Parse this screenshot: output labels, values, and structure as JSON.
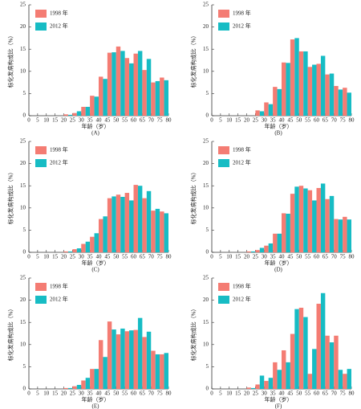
{
  "chart_data": [
    {
      "type": "bar",
      "label": "(A)",
      "xlabel": "年龄（岁）",
      "ylabel": "标化发病构成比（%）",
      "x": [
        0,
        5,
        10,
        15,
        20,
        25,
        30,
        35,
        40,
        45,
        50,
        55,
        60,
        65,
        70,
        75
      ],
      "xlim": [
        0,
        80
      ],
      "xticks": [
        0,
        5,
        10,
        15,
        20,
        25,
        30,
        35,
        40,
        45,
        50,
        55,
        60,
        65,
        70,
        75,
        80
      ],
      "ylim": [
        0,
        25
      ],
      "yticks": [
        0,
        5,
        10,
        15,
        20,
        25
      ],
      "legend": "upper left",
      "series": [
        {
          "name": "1998 年",
          "color": "#f47c73",
          "values": [
            0,
            0,
            0,
            0,
            0.3,
            0.6,
            2.0,
            4.5,
            8.8,
            14.2,
            15.6,
            13.0,
            14.0,
            10.3,
            7.5,
            8.6
          ]
        },
        {
          "name": "2012 年",
          "color": "#17bcc4",
          "values": [
            0,
            0,
            0,
            0,
            0.2,
            1.0,
            2.0,
            4.3,
            8.3,
            14.3,
            14.6,
            11.8,
            14.6,
            12.8,
            7.8,
            8.0
          ]
        }
      ]
    },
    {
      "type": "bar",
      "label": "(B)",
      "xlabel": "年龄（岁）",
      "ylabel": "标化发病构成比（%）",
      "x": [
        0,
        5,
        10,
        15,
        20,
        25,
        30,
        35,
        40,
        45,
        50,
        55,
        60,
        65,
        70,
        75
      ],
      "xlim": [
        0,
        80
      ],
      "xticks": [
        0,
        5,
        10,
        15,
        20,
        25,
        30,
        35,
        40,
        45,
        50,
        55,
        60,
        65,
        70,
        75,
        80
      ],
      "ylim": [
        0,
        25
      ],
      "yticks": [
        0,
        5,
        10,
        15,
        20,
        25
      ],
      "legend": "upper left",
      "series": [
        {
          "name": "1998 年",
          "color": "#f47c73",
          "values": [
            0,
            0,
            0,
            0,
            0,
            1.2,
            3.0,
            6.5,
            12.0,
            17.2,
            14.5,
            11.0,
            11.7,
            9.3,
            6.7,
            6.3
          ]
        },
        {
          "name": "2012 年",
          "color": "#17bcc4",
          "values": [
            0,
            0,
            0,
            0,
            0,
            1.0,
            2.6,
            6.0,
            11.9,
            17.5,
            14.5,
            11.5,
            13.5,
            9.5,
            5.9,
            5.2
          ]
        }
      ]
    },
    {
      "type": "bar",
      "label": "(C)",
      "xlabel": "年龄（岁）",
      "ylabel": "标化发病构成比（%）",
      "x": [
        0,
        5,
        10,
        15,
        20,
        25,
        30,
        35,
        40,
        45,
        50,
        55,
        60,
        65,
        70,
        75
      ],
      "xlim": [
        0,
        80
      ],
      "xticks": [
        0,
        5,
        10,
        15,
        20,
        25,
        30,
        35,
        40,
        45,
        50,
        55,
        60,
        65,
        70,
        75,
        80
      ],
      "ylim": [
        0,
        25
      ],
      "yticks": [
        0,
        5,
        10,
        15,
        20,
        25
      ],
      "legend": "upper left",
      "series": [
        {
          "name": "1998 年",
          "color": "#f47c73",
          "values": [
            0,
            0,
            0,
            0,
            0.2,
            0.7,
            1.9,
            3.5,
            7.5,
            12.2,
            13.0,
            13.4,
            15.2,
            12.2,
            9.4,
            9.2
          ]
        },
        {
          "name": "2012 年",
          "color": "#17bcc4",
          "values": [
            0,
            0,
            0,
            0,
            0.2,
            0.9,
            2.4,
            4.3,
            8.1,
            12.6,
            12.5,
            11.7,
            15.0,
            13.8,
            9.8,
            8.8
          ]
        }
      ]
    },
    {
      "type": "bar",
      "label": "(D)",
      "xlabel": "年龄（岁）",
      "ylabel": "标化发病构成比（%）",
      "x": [
        0,
        5,
        10,
        15,
        20,
        25,
        30,
        35,
        40,
        45,
        50,
        55,
        60,
        65,
        70,
        75
      ],
      "xlim": [
        0,
        80
      ],
      "xticks": [
        0,
        5,
        10,
        15,
        20,
        25,
        30,
        35,
        40,
        45,
        50,
        55,
        60,
        65,
        70,
        75,
        80
      ],
      "ylim": [
        0,
        25
      ],
      "yticks": [
        0,
        5,
        10,
        15,
        20,
        25
      ],
      "legend": "upper left",
      "series": [
        {
          "name": "1998 年",
          "color": "#f47c73",
          "values": [
            0,
            0,
            0,
            0,
            0.2,
            0.5,
            1.5,
            4.2,
            8.8,
            13.2,
            15.0,
            14.0,
            14.5,
            12.0,
            7.5,
            8.0
          ]
        },
        {
          "name": "2012 年",
          "color": "#17bcc4",
          "values": [
            0,
            0,
            0,
            0,
            0.2,
            1.0,
            2.0,
            4.2,
            8.7,
            14.8,
            14.4,
            11.7,
            15.5,
            12.7,
            7.4,
            7.4
          ]
        }
      ]
    },
    {
      "type": "bar",
      "label": "(E)",
      "xlabel": "年龄（岁）",
      "ylabel": "标化发病构成比（%）",
      "x": [
        0,
        5,
        10,
        15,
        20,
        25,
        30,
        35,
        40,
        45,
        50,
        55,
        60,
        65,
        70,
        75
      ],
      "xlim": [
        0,
        80
      ],
      "xticks": [
        0,
        5,
        10,
        15,
        20,
        25,
        30,
        35,
        40,
        45,
        50,
        55,
        60,
        65,
        70,
        75,
        80
      ],
      "ylim": [
        0,
        25
      ],
      "yticks": [
        0,
        5,
        10,
        15,
        20,
        25
      ],
      "legend": "upper left",
      "series": [
        {
          "name": "1998 年",
          "color": "#f47c73",
          "values": [
            0,
            0,
            0,
            0,
            0.2,
            0.6,
            1.9,
            4.5,
            11.0,
            15.2,
            12.3,
            13.0,
            13.3,
            11.7,
            8.6,
            7.8
          ]
        },
        {
          "name": "2012 年",
          "color": "#17bcc4",
          "values": [
            0,
            0,
            0,
            0,
            0.2,
            0.9,
            2.5,
            4.5,
            7.2,
            13.4,
            13.6,
            13.2,
            16.0,
            12.9,
            7.8,
            8.1
          ]
        }
      ]
    },
    {
      "type": "bar",
      "label": "(F)",
      "xlabel": "年龄（岁）",
      "ylabel": "标化发病构成比（%）",
      "x": [
        0,
        5,
        10,
        15,
        20,
        25,
        30,
        35,
        40,
        45,
        50,
        55,
        60,
        65,
        70,
        75
      ],
      "xlim": [
        0,
        80
      ],
      "xticks": [
        0,
        5,
        10,
        15,
        20,
        25,
        30,
        35,
        40,
        45,
        50,
        55,
        60,
        65,
        70,
        75,
        80
      ],
      "ylim": [
        0,
        25
      ],
      "yticks": [
        0,
        5,
        10,
        15,
        20,
        25
      ],
      "legend": "upper left",
      "series": [
        {
          "name": "1998 年",
          "color": "#f47c73",
          "values": [
            0,
            0,
            0,
            0,
            0.3,
            1.0,
            1.8,
            6.0,
            8.7,
            12.4,
            18.3,
            3.4,
            19.2,
            12.0,
            12.0,
            3.4
          ]
        },
        {
          "name": "2012 年",
          "color": "#17bcc4",
          "values": [
            0,
            0,
            0,
            0,
            0.2,
            3.0,
            2.5,
            4.3,
            6.0,
            18.0,
            16.2,
            9.0,
            21.6,
            10.5,
            4.3,
            4.5
          ]
        }
      ]
    }
  ]
}
